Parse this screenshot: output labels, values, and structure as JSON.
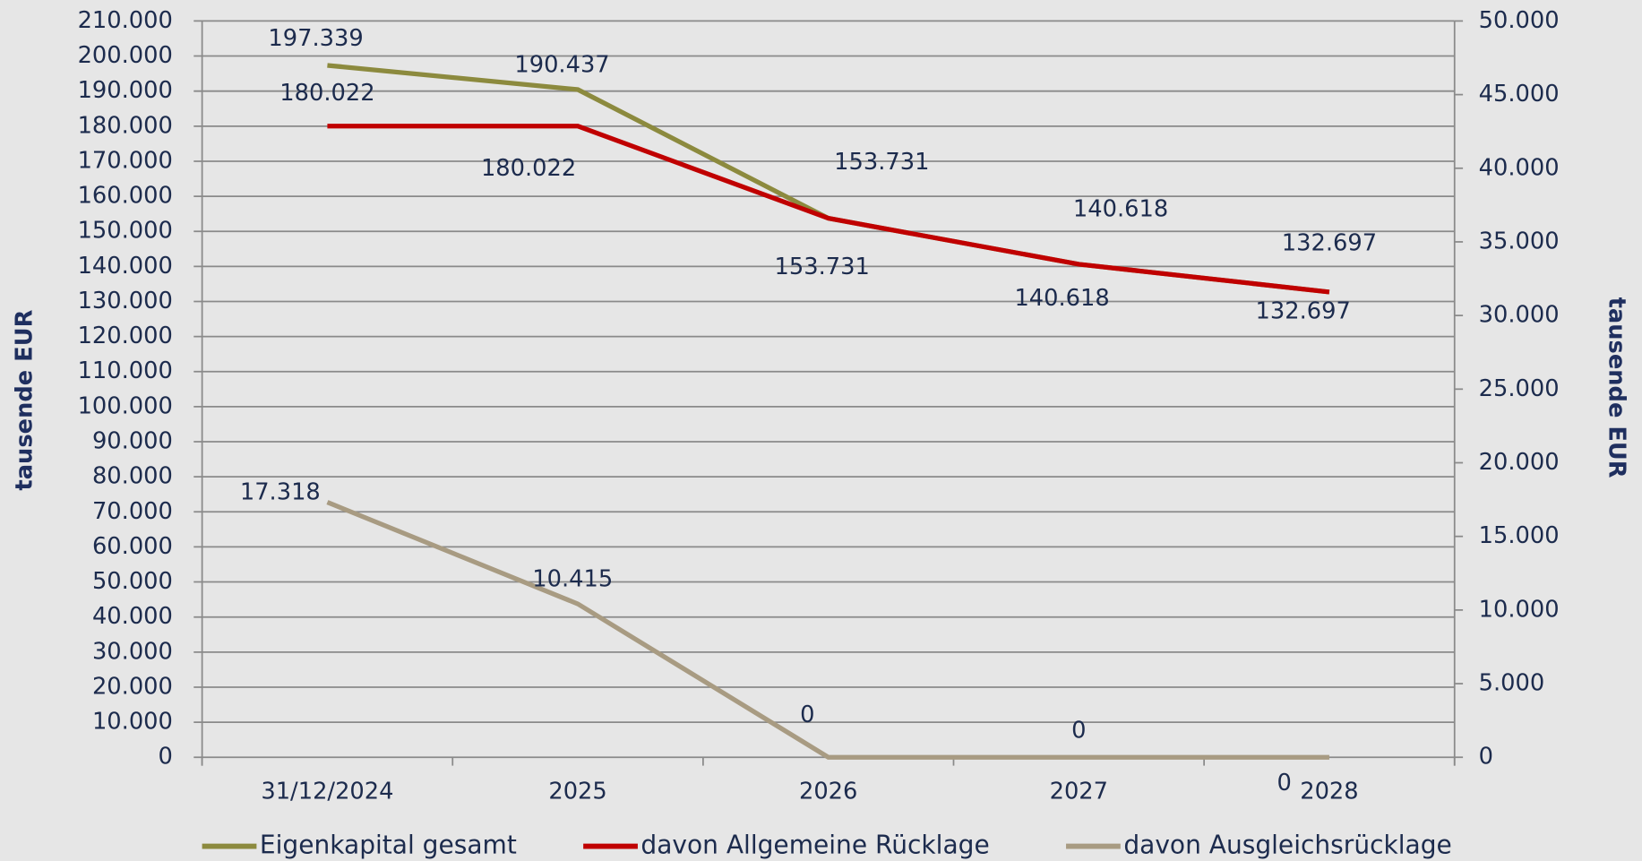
{
  "chart_data": {
    "type": "line",
    "categories": [
      "31/12/2024",
      "2025",
      "2026",
      "2027",
      "2028"
    ],
    "ylabel": "tausende EUR",
    "y2label": "tausende EUR",
    "ylim": [
      0,
      210000
    ],
    "yticks": [
      0,
      {
        "value": 10000,
        "label": "10.000"
      },
      {
        "value": 20000,
        "label": "20.000"
      },
      {
        "value": 30000,
        "label": "30.000"
      },
      {
        "value": 40000,
        "label": "40.000"
      },
      {
        "value": 50000,
        "label": "50.000"
      },
      {
        "value": 60000,
        "label": "60.000"
      },
      {
        "value": 70000,
        "label": "70.000"
      },
      {
        "value": 80000,
        "label": "80.000"
      },
      {
        "value": 90000,
        "label": "90.000"
      },
      {
        "value": 100000,
        "label": "100.000"
      },
      {
        "value": 110000,
        "label": "110.000"
      },
      {
        "value": 120000,
        "label": "120.000"
      },
      {
        "value": 130000,
        "label": "130.000"
      },
      {
        "value": 140000,
        "label": "140.000"
      },
      {
        "value": 150000,
        "label": "150.000"
      },
      {
        "value": 160000,
        "label": "160.000"
      },
      {
        "value": 170000,
        "label": "170.000"
      },
      {
        "value": 180000,
        "label": "180.000"
      },
      {
        "value": 190000,
        "label": "190.000"
      },
      {
        "value": 200000,
        "label": "200.000"
      },
      {
        "value": 210000,
        "label": "210.000"
      }
    ],
    "y2lim": [
      0,
      50000
    ],
    "y2ticks": [
      0,
      {
        "value": 5000,
        "label": "5.000"
      },
      {
        "value": 10000,
        "label": "10.000"
      },
      {
        "value": 15000,
        "label": "15.000"
      },
      {
        "value": 20000,
        "label": "20.000"
      },
      {
        "value": 25000,
        "label": "25.000"
      },
      {
        "value": 30000,
        "label": "30.000"
      },
      {
        "value": 35000,
        "label": "35.000"
      },
      {
        "value": 40000,
        "label": "40.000"
      },
      {
        "value": 45000,
        "label": "45.000"
      },
      {
        "value": 50000,
        "label": "50.000"
      }
    ],
    "grid": true,
    "legend": "bottom",
    "series": [
      {
        "name": "Eigenkapital gesamt",
        "color": "#8c8a3e",
        "values": [
          197339,
          190437,
          153731,
          140618,
          132697
        ],
        "value_labels": [
          "197.339",
          "190.437",
          "153.731",
          "140.618",
          "132.697"
        ]
      },
      {
        "name": "davon Allgemeine Rücklage",
        "color": "#c00000",
        "values": [
          180022,
          180022,
          153731,
          140618,
          132697
        ],
        "value_labels": [
          "180.022",
          "180.022",
          "153.731",
          "140.618",
          "132.697"
        ]
      },
      {
        "name": "davon Ausgleichsrücklage",
        "color": "#a89b82",
        "axis": "y2",
        "values": [
          17318,
          10415,
          0,
          0,
          0
        ],
        "value_labels": [
          "17.318",
          "10.415",
          "0",
          "0",
          "0"
        ]
      }
    ]
  }
}
